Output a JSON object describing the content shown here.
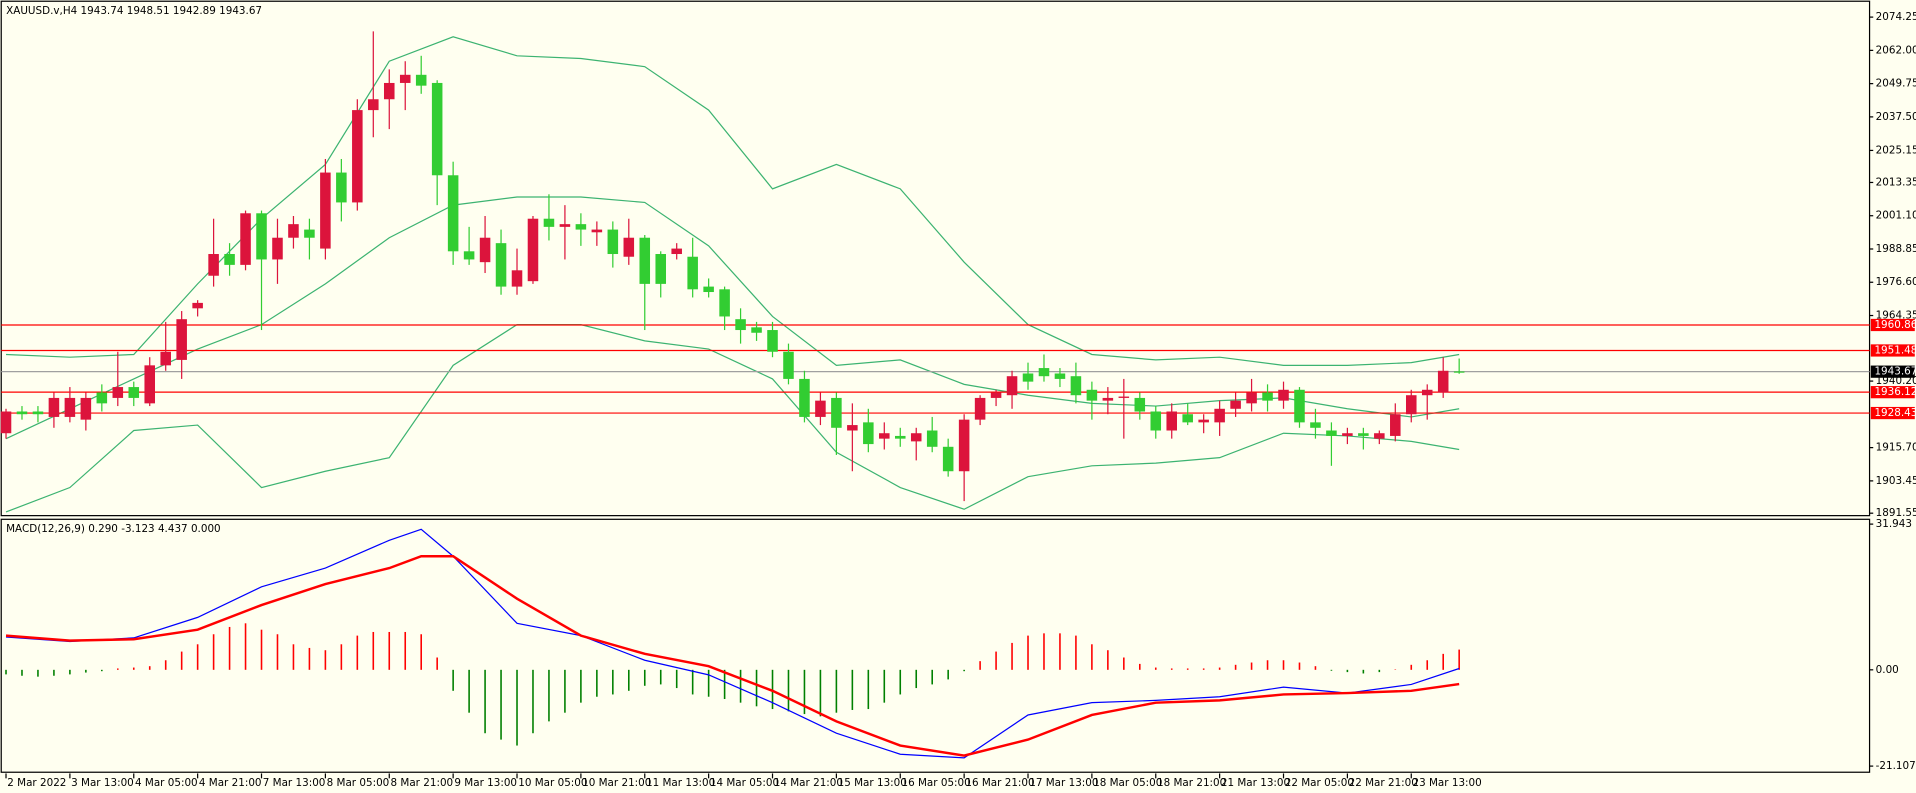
{
  "chart_data": [
    {
      "type": "candlestick",
      "title": "XAUUSD.v,H4  1943.74 1948.51 1942.89 1943.67",
      "open": [
        1921,
        1929,
        1929,
        1927,
        1927,
        1926,
        1936,
        1934,
        1938,
        1932,
        1946,
        1948,
        1967,
        1979,
        1987,
        1983,
        2002,
        1985,
        1993,
        1996,
        1989,
        2017,
        2006,
        2040,
        2044,
        2050,
        2053,
        2050,
        2016,
        1988,
        1984,
        1991,
        1975,
        1977,
        2000,
        1997,
        1998,
        1995,
        1996,
        1986,
        1993,
        1987,
        1987,
        1986,
        1975,
        1974,
        1963,
        1960,
        1959,
        1951,
        1941,
        1927,
        1934,
        1922,
        1925,
        1919,
        1920,
        1918,
        1922,
        1916,
        1907,
        1926,
        1934,
        1935,
        1943,
        1945,
        1943,
        1942,
        1937,
        1933,
        1934,
        1934,
        1929,
        1922,
        1928,
        1925,
        1925,
        1930,
        1932,
        1936,
        1933,
        1937,
        1925,
        1922,
        1920,
        1921,
        1919,
        1920,
        1928,
        1935,
        1936,
        1943.74
      ],
      "high": [
        1930,
        1931,
        1931,
        1936,
        1938,
        1936,
        1939,
        1951,
        1940,
        1949,
        1962,
        1966,
        1970,
        2000,
        1991,
        2003,
        2003,
        2000,
        2001,
        2000,
        2022,
        2022,
        2044,
        2069,
        2055,
        2058,
        2060,
        2051,
        2021,
        1997,
        2001,
        1996,
        1989,
        2001,
        2009,
        2005,
        2002,
        1999,
        1999,
        2000,
        1994,
        1988,
        1991,
        1993,
        1978,
        1975,
        1967,
        1962,
        1962,
        1954,
        1944,
        1936,
        1936,
        1932,
        1930,
        1925,
        1923,
        1923,
        1927,
        1919,
        1928,
        1935,
        1937,
        1944,
        1947,
        1950,
        1945,
        1947,
        1940,
        1938,
        1941,
        1936,
        1931,
        1932,
        1932,
        1928,
        1933,
        1936,
        1941,
        1939,
        1940,
        1938,
        1930,
        1925,
        1923,
        1923,
        1922,
        1932,
        1937,
        1939,
        1949,
        1948.51
      ],
      "low": [
        1919,
        1926,
        1925,
        1923,
        1925,
        1922,
        1929,
        1931,
        1931,
        1931,
        1944,
        1941,
        1964,
        1975,
        1979,
        1981,
        1959,
        1976,
        1989,
        1985,
        1985,
        1999,
        2003,
        2030,
        2033,
        2040,
        2046,
        2005,
        1983,
        1983,
        1980,
        1972,
        1972,
        1976,
        1992,
        1985,
        1990,
        1990,
        1982,
        1983,
        1959,
        1971,
        1985,
        1971,
        1971,
        1959,
        1954,
        1955,
        1949,
        1939,
        1925,
        1924,
        1913,
        1907,
        1914,
        1915,
        1916,
        1911,
        1914,
        1905,
        1896,
        1924,
        1931,
        1930,
        1937,
        1940,
        1938,
        1932,
        1926,
        1928,
        1919,
        1926,
        1919,
        1919,
        1924,
        1921,
        1920,
        1927,
        1929,
        1929,
        1930,
        1923,
        1919,
        1909,
        1917,
        1915,
        1917,
        1918,
        1925,
        1926,
        1934,
        1942.89
      ],
      "close": [
        1929,
        1928,
        1928,
        1934,
        1934,
        1934,
        1932,
        1938,
        1934,
        1946,
        1951,
        1963,
        1969,
        1987,
        1983,
        2002,
        1985,
        1993,
        1998,
        1993,
        2017,
        2006,
        2040,
        2044,
        2050,
        2053,
        2049,
        2016,
        1988,
        1985,
        1993,
        1975,
        1981,
        2000,
        1997,
        1998,
        1996,
        1996,
        1987,
        1993,
        1976,
        1976,
        1989,
        1974,
        1973,
        1964,
        1959,
        1958,
        1951,
        1941,
        1927,
        1933,
        1923,
        1924,
        1917,
        1921,
        1919,
        1921,
        1916,
        1907,
        1926,
        1934,
        1936,
        1942,
        1940,
        1942,
        1941,
        1935,
        1933,
        1934,
        1934.5,
        1929,
        1922,
        1929,
        1925,
        1926,
        1930,
        1933,
        1936,
        1933,
        1937,
        1925,
        1923,
        1920,
        1921,
        1920,
        1921,
        1928,
        1935,
        1937,
        1944,
        1943.67
      ],
      "up_color": "#dc143c",
      "down_color": "#32cd32",
      "bands": [
        {
          "color": "#3cb371",
          "x": [
            0,
            4,
            8,
            12,
            16,
            20,
            24,
            28,
            32,
            36,
            40,
            44,
            48,
            52,
            56,
            60,
            64,
            68,
            72,
            76,
            80,
            84,
            88,
            91
          ],
          "values": [
            1950,
            1949,
            1950,
            1976,
            2000,
            2020,
            2058,
            2067,
            2060,
            2059,
            2056,
            2040,
            2011,
            2020,
            2011,
            1984,
            1961,
            1950,
            1948,
            1949,
            1946,
            1946,
            1947,
            1950
          ]
        },
        {
          "color": "#3cb371",
          "x": [
            0,
            4,
            8,
            12,
            16,
            20,
            24,
            28,
            32,
            36,
            40,
            44,
            48,
            52,
            56,
            60,
            64,
            68,
            72,
            76,
            80,
            84,
            88,
            91
          ],
          "values": [
            1919,
            1930,
            1941,
            1952,
            1961,
            1976,
            1993,
            2005,
            2008,
            2008,
            2006,
            1990,
            1964,
            1946,
            1948,
            1939,
            1935,
            1932,
            1931,
            1933,
            1934,
            1930,
            1927,
            1930
          ]
        },
        {
          "color": "#3cb371",
          "x": [
            0,
            4,
            8,
            12,
            16,
            20,
            24,
            28,
            32,
            36,
            40,
            44,
            48,
            52,
            56,
            60,
            64,
            68,
            72,
            76,
            80,
            84,
            88,
            91
          ],
          "values": [
            1892,
            1901,
            1922,
            1924,
            1901,
            1907,
            1912,
            1946,
            1961,
            1961,
            1955,
            1952,
            1941,
            1914,
            1901,
            1893,
            1905,
            1909,
            1910,
            1912,
            1921,
            1920,
            1918,
            1915
          ]
        }
      ],
      "levels": [
        1960.86,
        1951.48,
        1936.12,
        1928.43
      ],
      "level_color": "#ff0000",
      "last_price": 1943.67,
      "last_price_color": "#a0a0a0",
      "xlim": [
        -0.3,
        116.7
      ],
      "xticks": [
        {
          "value": 0,
          "label": "2 Mar 2022"
        },
        {
          "value": 4,
          "label": "3 Mar 13:00"
        },
        {
          "value": 8,
          "label": "4 Mar 05:00"
        },
        {
          "value": 12,
          "label": "4 Mar 21:00"
        },
        {
          "value": 16,
          "label": "7 Mar 13:00"
        },
        {
          "value": 20,
          "label": "8 Mar 05:00"
        },
        {
          "value": 24,
          "label": "8 Mar 21:00"
        },
        {
          "value": 28,
          "label": "9 Mar 13:00"
        },
        {
          "value": 32,
          "label": "10 Mar 05:00"
        },
        {
          "value": 36,
          "label": "10 Mar 21:00"
        },
        {
          "value": 40,
          "label": "11 Mar 13:00"
        },
        {
          "value": 44,
          "label": "14 Mar 05:00"
        },
        {
          "value": 48,
          "label": "14 Mar 21:00"
        },
        {
          "value": 52,
          "label": "15 Mar 13:00"
        },
        {
          "value": 56,
          "label": "16 Mar 05:00"
        },
        {
          "value": 60,
          "label": "16 Mar 21:00"
        },
        {
          "value": 64,
          "label": "17 Mar 13:00"
        },
        {
          "value": 68,
          "label": "18 Mar 05:00"
        },
        {
          "value": 72,
          "label": "18 Mar 21:00"
        },
        {
          "value": 76,
          "label": "21 Mar 13:00"
        },
        {
          "value": 80,
          "label": "22 Mar 05:00"
        },
        {
          "value": 84,
          "label": "22 Mar 21:00"
        },
        {
          "value": 88,
          "label": "23 Mar 13:00"
        }
      ],
      "ylim": [
        1890.65,
        2080.1
      ],
      "yticks": [
        2074.25,
        {
          "value": 2062,
          "label": "2062.00"
        },
        2049.75,
        {
          "value": 2037.5,
          "label": "2037.50"
        },
        2025.15,
        2013.35,
        {
          "value": 2001.1,
          "label": "2001.10"
        },
        1988.85,
        {
          "value": 1976.6,
          "label": "1976.60"
        },
        1964.35,
        {
          "value": 1940.2,
          "label": "1940.20"
        },
        {
          "value": 1915.7,
          "label": "1915.70"
        },
        1903.45,
        1891.55
      ]
    },
    {
      "type": "macd",
      "title": "MACD(12,26,9) 0.290 -3.123 4.437 0.000",
      "histogram": [
        -1.0,
        -1.3,
        -1.5,
        -1.3,
        -1.0,
        -0.6,
        -0.3,
        0.3,
        0.5,
        0.8,
        2.1,
        4.0,
        5.6,
        7.8,
        9.4,
        10.2,
        8.8,
        7.8,
        5.6,
        4.8,
        4.3,
        5.6,
        7.5,
        8.3,
        8.3,
        8.3,
        7.8,
        2.7,
        -4.6,
        -9.4,
        -13.9,
        -15.3,
        -16.6,
        -13.9,
        -11.3,
        -9.4,
        -7.2,
        -5.9,
        -5.4,
        -4.6,
        -3.5,
        -3.2,
        -4.0,
        -5.4,
        -5.9,
        -6.4,
        -7.2,
        -8.0,
        -8.6,
        -9.1,
        -9.7,
        -10.2,
        -9.4,
        -8.8,
        -8.6,
        -7.2,
        -5.4,
        -4.0,
        -3.2,
        -2.1,
        -0.3,
        1.9,
        4.0,
        5.9,
        7.5,
        8.0,
        8.0,
        7.5,
        5.6,
        4.3,
        2.7,
        1.3,
        0.5,
        0.3,
        0.3,
        0.3,
        0.5,
        1.1,
        1.6,
        2.1,
        2.1,
        1.6,
        0.8,
        -0.2,
        -0.5,
        -0.8,
        -0.5,
        0.1,
        1.1,
        2.1,
        3.5,
        4.437
      ],
      "hist_up_color": "#ff0000",
      "hist_down_color": "#008000",
      "series": [
        {
          "color": "#0000ff",
          "x": [
            0,
            4,
            8,
            12,
            16,
            20,
            24,
            26,
            28,
            32,
            36,
            40,
            44,
            48,
            52,
            56,
            60,
            64,
            68,
            72,
            76,
            80,
            84,
            88,
            91
          ],
          "values": [
            7.2,
            6.2,
            7.0,
            11.5,
            18.2,
            22.3,
            28.4,
            30.8,
            24.9,
            10.2,
            7.5,
            2.1,
            -1.1,
            -7.2,
            -13.9,
            -18.5,
            -19.3,
            -9.9,
            -7.2,
            -6.7,
            -5.9,
            -3.8,
            -5.1,
            -3.2,
            0.29
          ]
        },
        {
          "color": "#ff0000",
          "x": [
            0,
            4,
            8,
            12,
            16,
            20,
            24,
            26,
            28,
            32,
            36,
            40,
            44,
            48,
            52,
            56,
            60,
            64,
            68,
            72,
            76,
            80,
            84,
            88,
            91
          ],
          "values": [
            7.5,
            6.4,
            6.7,
            8.8,
            14.2,
            18.8,
            22.3,
            24.9,
            24.9,
            15.6,
            7.5,
            3.5,
            0.8,
            -4.6,
            -11.3,
            -16.6,
            -18.8,
            -15.3,
            -9.9,
            -7.2,
            -6.7,
            -5.4,
            -5.1,
            -4.6,
            -3.123
          ]
        }
      ],
      "xlim": [
        -0.3,
        116.7
      ],
      "ylim": [
        -22.45,
        33.0
      ],
      "yticks": [
        31.943,
        {
          "value": 0,
          "label": "0.00"
        },
        -21.107
      ]
    }
  ]
}
